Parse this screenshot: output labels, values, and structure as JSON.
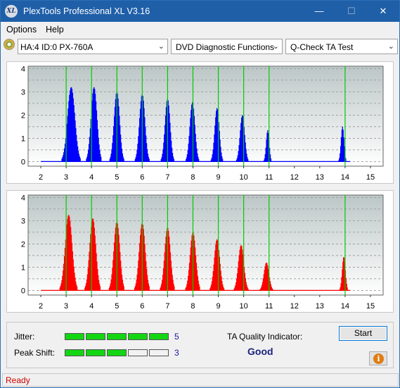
{
  "window": {
    "title": "PlexTools Professional XL V3.16",
    "icon_text": "XL",
    "min_glyph": "—",
    "max_glyph": "☐",
    "close_glyph": "✕"
  },
  "menu": {
    "items": [
      "Options",
      "Help"
    ]
  },
  "toolbar": {
    "drive": "HA:4 ID:0  PX-760A",
    "function": "DVD Diagnostic Functions",
    "test": "Q-Check TA Test",
    "dropdown_glyph": "⌄"
  },
  "colors": {
    "land_bars": "#0000ff",
    "pit_bars": "#ff0000",
    "marker_lines": "#00cc00",
    "plot_background_top": "#bcc6c6",
    "meter_on": "#13d613"
  },
  "chart_data": [
    {
      "type": "bar",
      "series_color": "#0000ff",
      "x_ticks": [
        "2",
        "3",
        "4",
        "5",
        "6",
        "7",
        "8",
        "9",
        "10",
        "11",
        "12",
        "13",
        "14",
        "15"
      ],
      "y_ticks": [
        "0",
        "0.5",
        "1",
        "1.5",
        "2",
        "2.5",
        "3",
        "3.5",
        "4"
      ],
      "xlim": [
        1.5,
        15.5
      ],
      "ylim": [
        -0.2,
        4.1
      ],
      "marker_lines_x": [
        3,
        4,
        5,
        6,
        7,
        8,
        9,
        10,
        11,
        14
      ],
      "peaks": [
        {
          "x": 3.2,
          "height": 3.2,
          "width": 0.32
        },
        {
          "x": 4.1,
          "height": 3.2,
          "width": 0.26
        },
        {
          "x": 5.0,
          "height": 3.0,
          "width": 0.24
        },
        {
          "x": 6.0,
          "height": 2.9,
          "width": 0.24
        },
        {
          "x": 7.0,
          "height": 2.7,
          "width": 0.22
        },
        {
          "x": 7.98,
          "height": 2.55,
          "width": 0.22
        },
        {
          "x": 8.95,
          "height": 2.3,
          "width": 0.2
        },
        {
          "x": 9.95,
          "height": 2.0,
          "width": 0.2
        },
        {
          "x": 10.95,
          "height": 1.35,
          "width": 0.13
        },
        {
          "x": 13.9,
          "height": 1.5,
          "width": 0.13
        }
      ]
    },
    {
      "type": "bar",
      "series_color": "#ff0000",
      "x_ticks": [
        "2",
        "3",
        "4",
        "5",
        "6",
        "7",
        "8",
        "9",
        "10",
        "11",
        "12",
        "13",
        "14",
        "15"
      ],
      "y_ticks": [
        "0",
        "0.5",
        "1",
        "1.5",
        "2",
        "2.5",
        "3",
        "3.5",
        "4"
      ],
      "xlim": [
        1.5,
        15.5
      ],
      "ylim": [
        -0.2,
        4.1
      ],
      "marker_lines_x": [
        3,
        4,
        5,
        6,
        7,
        8,
        9,
        10,
        11,
        14
      ],
      "peaks": [
        {
          "x": 3.1,
          "height": 3.25,
          "width": 0.3
        },
        {
          "x": 4.05,
          "height": 3.1,
          "width": 0.27
        },
        {
          "x": 5.0,
          "height": 2.95,
          "width": 0.26
        },
        {
          "x": 6.0,
          "height": 2.9,
          "width": 0.26
        },
        {
          "x": 7.0,
          "height": 2.7,
          "width": 0.25
        },
        {
          "x": 8.0,
          "height": 2.5,
          "width": 0.25
        },
        {
          "x": 8.95,
          "height": 2.2,
          "width": 0.24
        },
        {
          "x": 9.9,
          "height": 1.95,
          "width": 0.24
        },
        {
          "x": 10.9,
          "height": 1.2,
          "width": 0.22
        },
        {
          "x": 13.95,
          "height": 1.45,
          "width": 0.14
        }
      ]
    }
  ],
  "results": {
    "jitter_label": "Jitter:",
    "jitter_value": "5",
    "jitter_level": 5,
    "peak_shift_label": "Peak Shift:",
    "peak_shift_value": "3",
    "peak_shift_level": 3,
    "meter_max": 5,
    "quality_label": "TA Quality Indicator:",
    "quality_value": "Good",
    "start_label": "Start",
    "info_glyph": "i"
  },
  "status": {
    "text": "Ready"
  }
}
